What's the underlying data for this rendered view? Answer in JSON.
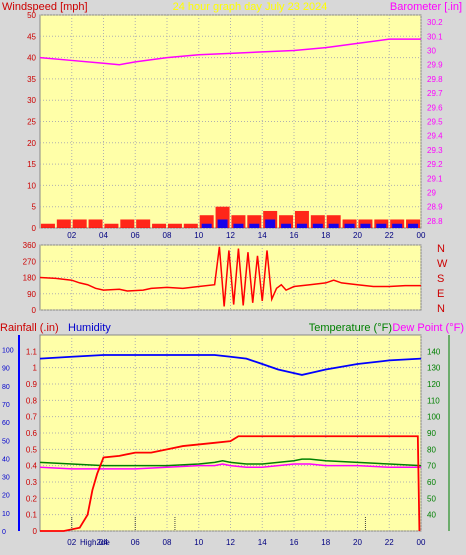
{
  "header": {
    "left_title": "Windspeed [mph]",
    "center_title": "24 hour graph day   July 23 2024",
    "right_title": "Barometer [.in]"
  },
  "colors": {
    "background": "#d8d8d8",
    "plot_bg": "#ffffa8",
    "wind_avg": "#ff0000",
    "wind_gust": "#0000ff",
    "barometer": "#ff00ff",
    "direction": "#ff0000",
    "humidity": "#0000ff",
    "rainfall": "#ff0000",
    "temperature": "#008000",
    "dew_point": "#ff00ff",
    "left_axis": "#cc0000",
    "right_axis": "#ff00ff",
    "temp_axis": "#008000",
    "hum_axis": "#0000ff"
  },
  "chart_data": [
    {
      "type": "bar",
      "title": "24 hour graph day   July 23 2024",
      "ylabel": "Windspeed [mph]",
      "ylabel_right": "Barometer [.in]",
      "ylim": [
        0,
        50
      ],
      "ylim_right": [
        28.75,
        30.25
      ],
      "y_ticks": [
        0,
        5,
        10,
        15,
        20,
        25,
        30,
        35,
        40,
        45,
        50
      ],
      "y_ticks_right": [
        "28.8",
        "28.9",
        "29",
        "29.1",
        "29.2",
        "29.3",
        "29.4",
        "29.5",
        "29.6",
        "29.7",
        "29.8",
        "29.9",
        "30",
        "30.1",
        "30.2"
      ],
      "x_ticks": [
        "02",
        "04",
        "06",
        "08",
        "10",
        "12",
        "14",
        "16",
        "18",
        "20",
        "22",
        "00"
      ],
      "xlim": [
        0,
        24
      ],
      "series": [
        {
          "name": "Barometer",
          "axis": "right",
          "x": [
            0,
            2,
            4,
            5,
            6,
            8,
            10,
            12,
            14,
            16,
            18,
            20,
            22,
            24
          ],
          "y": [
            29.95,
            29.93,
            29.91,
            29.9,
            29.92,
            29.95,
            29.97,
            29.98,
            29.99,
            30.0,
            30.02,
            30.05,
            30.08,
            30.08
          ]
        },
        {
          "name": "Windspeed",
          "axis": "left",
          "style": "bars",
          "x": [
            0.5,
            1.5,
            2.5,
            3.5,
            4.5,
            5.5,
            6.5,
            7.5,
            8.5,
            9.5,
            10.5,
            11.5,
            12.5,
            13.5,
            14.5,
            15.5,
            16.5,
            17.5,
            18.5,
            19.5,
            20.5,
            21.5,
            22.5,
            23.5
          ],
          "y": [
            1,
            2,
            2,
            2,
            1,
            2,
            2,
            1,
            1,
            1,
            3,
            5,
            3,
            3,
            4,
            3,
            4,
            3,
            3,
            2,
            2,
            2,
            2,
            2
          ]
        },
        {
          "name": "Gust",
          "axis": "left",
          "style": "bars",
          "x": [
            10.5,
            11.5,
            12.5,
            13.5,
            14.5,
            15.5,
            16.5,
            17.5,
            18.5,
            19.5,
            20.5,
            21.5,
            22.5,
            23.5
          ],
          "y": [
            1,
            2,
            1,
            1,
            2,
            1,
            1,
            1,
            1,
            1,
            1,
            1,
            1,
            1
          ]
        }
      ]
    },
    {
      "type": "line",
      "ylim": [
        0,
        360
      ],
      "y_ticks": [
        0,
        90,
        180,
        270,
        360
      ],
      "y_ticks_right": [
        "N",
        "W",
        "S",
        "E",
        "N"
      ],
      "xlim": [
        0,
        24
      ],
      "series": [
        {
          "name": "Wind Direction",
          "x": [
            0,
            1,
            2,
            2.5,
            3,
            3.5,
            4,
            5,
            5.5,
            6.5,
            7,
            8,
            9,
            10,
            11,
            11.3,
            11.6,
            11.9,
            12.2,
            12.5,
            12.8,
            13.1,
            13.4,
            13.7,
            14.0,
            14.3,
            14.6,
            14.9,
            15.2,
            15.5,
            16,
            17,
            18,
            18.5,
            19,
            20,
            21,
            22,
            23,
            24
          ],
          "y": [
            180,
            175,
            165,
            150,
            140,
            120,
            110,
            115,
            105,
            110,
            120,
            125,
            120,
            130,
            140,
            350,
            20,
            330,
            30,
            340,
            25,
            320,
            40,
            300,
            50,
            330,
            60,
            120,
            140,
            110,
            130,
            140,
            150,
            165,
            150,
            140,
            130,
            130,
            135,
            135
          ]
        }
      ]
    },
    {
      "type": "line",
      "ylabel": "Rainfall (.in)",
      "ylabel2": "Humidity",
      "ylabel_right": "Temperature (°F)",
      "ylabel_right2": "Dew Point (°F)",
      "ylim": [
        0,
        1.2
      ],
      "y_ticks": [
        "0",
        "0.1",
        "0.2",
        "0.3",
        "0.4",
        "0.5",
        "0.6",
        "0.7",
        "0.8",
        "0.9",
        "1",
        "1.1"
      ],
      "y_ticks_hum": [
        0,
        10,
        20,
        30,
        40,
        50,
        60,
        70,
        80,
        90,
        100
      ],
      "y_ticks_right": [
        40,
        50,
        60,
        70,
        80,
        90,
        100,
        110,
        120,
        130,
        140
      ],
      "ylim_right": [
        30,
        150
      ],
      "x_ticks": [
        "02",
        "04",
        "06",
        "08",
        "10",
        "12",
        "14",
        "16",
        "18",
        "20",
        "22",
        "00"
      ],
      "xlim": [
        0,
        24
      ],
      "series": [
        {
          "name": "Humidity",
          "axis": "hum",
          "x": [
            0,
            2,
            4,
            6,
            8,
            10,
            11,
            12,
            13,
            14,
            15,
            16,
            16.5,
            17,
            18,
            20,
            22,
            24
          ],
          "y": [
            95,
            96,
            97,
            97,
            97,
            97,
            97,
            96,
            95,
            92,
            89,
            87,
            86,
            87,
            89,
            92,
            94,
            95
          ]
        },
        {
          "name": "Rainfall",
          "axis": "left",
          "x": [
            0,
            1.5,
            2.5,
            3,
            3.3,
            3.6,
            4,
            5,
            6,
            7,
            8,
            9,
            10,
            11,
            12,
            12.5,
            13,
            14,
            15,
            16,
            17,
            18,
            20,
            22,
            23.8,
            23.9
          ],
          "y": [
            0,
            0,
            0.02,
            0.1,
            0.25,
            0.35,
            0.45,
            0.46,
            0.48,
            0.48,
            0.5,
            0.52,
            0.53,
            0.54,
            0.55,
            0.58,
            0.58,
            0.58,
            0.58,
            0.58,
            0.58,
            0.58,
            0.58,
            0.58,
            0.58,
            0
          ]
        },
        {
          "name": "Temperature",
          "axis": "right",
          "x": [
            0,
            2,
            4,
            6,
            8,
            10,
            11,
            11.5,
            12,
            13,
            14,
            15,
            16,
            16.5,
            17,
            18,
            20,
            22,
            24
          ],
          "y": [
            72,
            71,
            70,
            70,
            70,
            71,
            72,
            73,
            72,
            71,
            71,
            72,
            73,
            74,
            74,
            73,
            72,
            71,
            70
          ]
        },
        {
          "name": "Dew Point",
          "axis": "right",
          "x": [
            0,
            2,
            4,
            6,
            8,
            10,
            11,
            11.5,
            12,
            13,
            14,
            15,
            16,
            16.5,
            17,
            18,
            20,
            22,
            24
          ],
          "y": [
            69,
            68,
            68,
            68,
            69,
            70,
            70,
            71,
            70,
            69,
            69,
            70,
            71,
            71,
            71,
            70,
            70,
            69,
            69
          ]
        }
      ],
      "annotation": "High2de"
    }
  ],
  "panel3": {
    "rain_label": "Rainfall (.in)",
    "hum_label": "Humidity",
    "temp_label": "Temperature (°F)",
    "dew_label": "Dew Point (°F)",
    "compass": [
      "N",
      "W",
      "S",
      "E",
      "N"
    ]
  }
}
